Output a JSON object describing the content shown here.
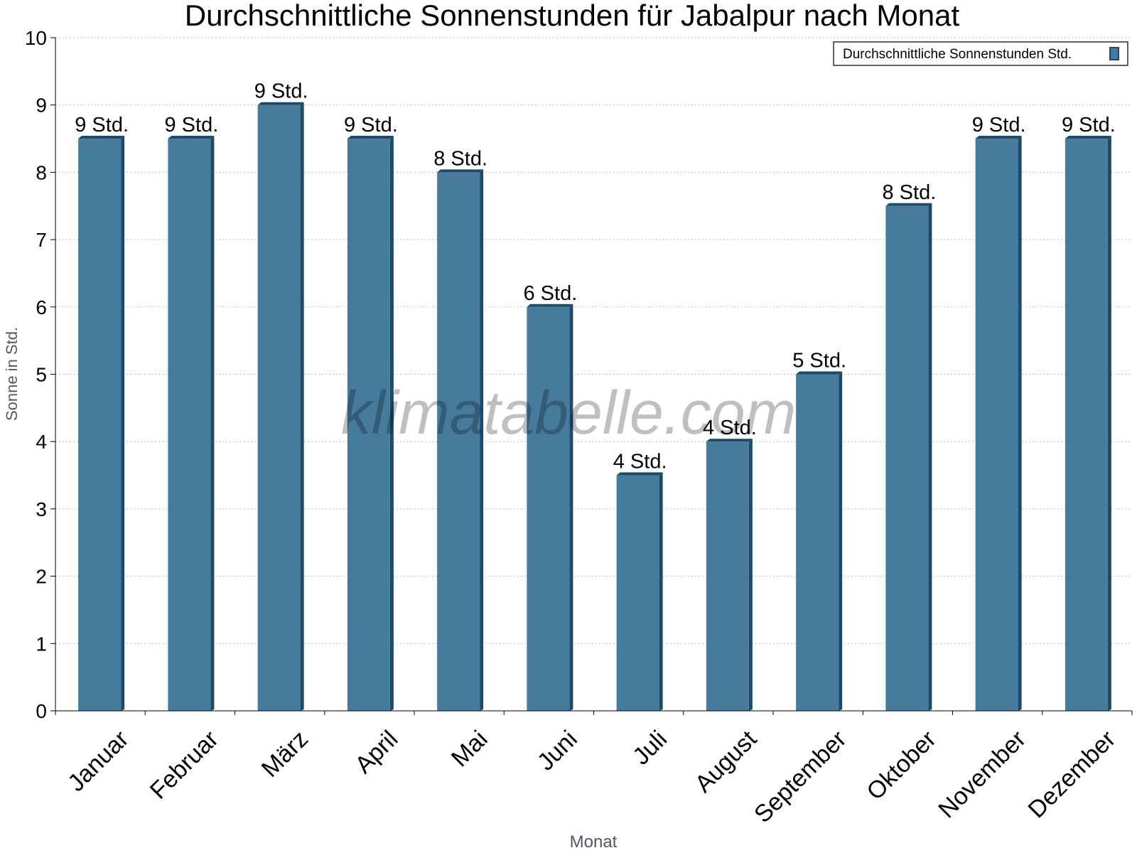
{
  "chart_data": {
    "type": "bar",
    "title": "Durchschnittliche Sonnenstunden für Jabalpur nach Monat",
    "xlabel": "Monat",
    "ylabel": "Sonne in Std.",
    "ylim": [
      0,
      10
    ],
    "yticks": [
      "0",
      "1",
      "2",
      "3",
      "4",
      "5",
      "6",
      "7",
      "8",
      "9",
      "10"
    ],
    "grid": true,
    "legend_position": "top-right",
    "categories": [
      "Januar",
      "Februar",
      "März",
      "April",
      "Mai",
      "Juni",
      "Juli",
      "August",
      "September",
      "Oktober",
      "November",
      "Dezember"
    ],
    "series": [
      {
        "name": "Durchschnittliche Sonnenstunden Std.",
        "values": [
          8.5,
          8.5,
          9,
          8.5,
          8,
          6,
          3.5,
          4,
          5,
          7.5,
          8.5,
          8.5
        ],
        "labels": [
          "9 Std.",
          "9 Std.",
          "9 Std.",
          "9 Std.",
          "8 Std.",
          "6 Std.",
          "4 Std.",
          "4 Std.",
          "5 Std.",
          "8 Std.",
          "9 Std.",
          "9 Std."
        ],
        "color": "#467b9e",
        "edge_color": "#1b4a6b"
      }
    ],
    "watermark": "klimatabelle.com"
  }
}
